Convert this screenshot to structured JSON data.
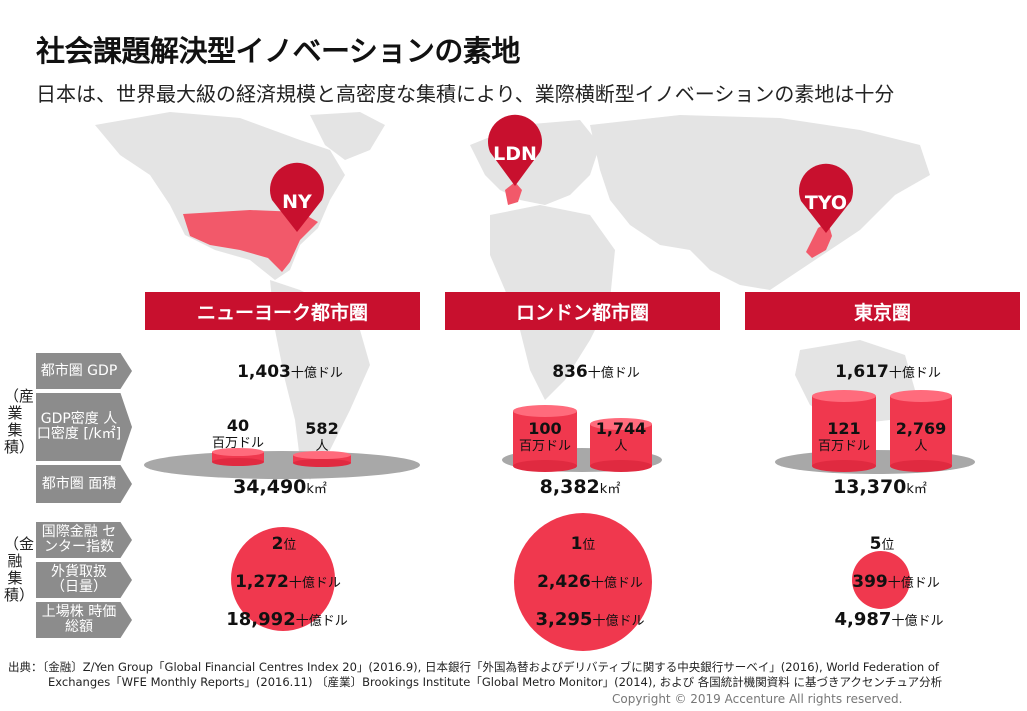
{
  "title": "社会課題解決型イノベーションの素地",
  "subtitle": "日本は、世界最大級の経済規模と高密度な集積により、業際横断型イノベーションの素地は十分",
  "pins": [
    "NY",
    "LDN",
    "TYO"
  ],
  "cities": [
    {
      "name": "ニューヨーク都市圏",
      "gdp": "1,403",
      "gdp_density": "40",
      "gdp_density_unit": "百万ドル",
      "pop_density": "582",
      "pop_density_unit": "人",
      "area": "34,490",
      "area_unit": "k㎡",
      "rank": "2",
      "rank_unit": "位",
      "fx": "1,272",
      "market_cap": "18,992"
    },
    {
      "name": "ロンドン都市圏",
      "gdp": "836",
      "gdp_density": "100",
      "gdp_density_unit": "百万ドル",
      "pop_density": "1,744",
      "pop_density_unit": "人",
      "area": "8,382",
      "area_unit": "k㎡",
      "rank": "1",
      "rank_unit": "位",
      "fx": "2,426",
      "market_cap": "3,295"
    },
    {
      "name": "東京圏",
      "gdp": "1,617",
      "gdp_density": "121",
      "gdp_density_unit": "百万ドル",
      "pop_density": "2,769",
      "pop_density_unit": "人",
      "area": "13,370",
      "area_unit": "k㎡",
      "rank": "5",
      "rank_unit": "位",
      "fx": "399",
      "market_cap": "4,987"
    }
  ],
  "unit_billion_usd": "十億ドル",
  "row_labels": {
    "gdp": "都市圏 GDP",
    "density": "GDP密度 人口密度 [/k㎡]",
    "area": "都市圏 面積",
    "index": "国際金融 センター指数",
    "fx": "外貨取扱 （日量）",
    "market_cap": "上場株 時価総額"
  },
  "groups": {
    "industry": "（産業集積）",
    "finance": "（金融集積）"
  },
  "source_line1": "出典：〔金融〕Z/Yen Group「Global Financial Centres Index 20」(2016.9), 日本銀行「外国為替およびデリバティブに関する中央銀行サーベイ」(2016), World Federation of",
  "source_line2": "Exchanges「WFE Monthly Reports」(2016.11) 〔産業〕Brookings Institute「Global Metro Monitor」(2014), および 各国統計機関資料 に基づきアクセンチュア分析",
  "copyright": "Copyright © 2019 Accenture  All rights reserved.",
  "colors": {
    "accent": "#c8102e",
    "bubble": "#f0384e",
    "map": "#e3e3e3",
    "label_bg": "#8c8c8c"
  }
}
